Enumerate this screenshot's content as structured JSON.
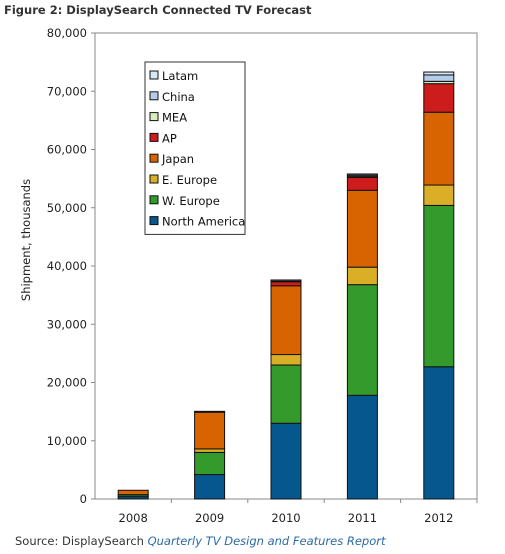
{
  "figure_title": "Figure 2: DisplaySearch Connected TV Forecast",
  "source": {
    "prefix": "Source: DisplaySearch ",
    "publication": "Quarterly TV Design and Features Report"
  },
  "chart_data": {
    "type": "bar",
    "stacked": true,
    "categories": [
      "2008",
      "2009",
      "2010",
      "2011",
      "2012"
    ],
    "ylabel": "Shipment, thousands",
    "xlabel": "",
    "ylim": [
      0,
      80000
    ],
    "yticks": [
      0,
      10000,
      20000,
      30000,
      40000,
      50000,
      60000,
      70000,
      80000
    ],
    "ytick_labels": [
      "0",
      "10,000",
      "20,000",
      "30,000",
      "40,000",
      "50,000",
      "60,000",
      "70,000",
      "80,000"
    ],
    "grid": false,
    "legend_position": "top-left",
    "series": [
      {
        "name": "North America",
        "color": "#05578e",
        "values": [
          400,
          4200,
          13000,
          17800,
          22700
        ]
      },
      {
        "name": "W. Europe",
        "color": "#339a2b",
        "values": [
          300,
          3800,
          10000,
          19000,
          27700
        ]
      },
      {
        "name": "E. Europe",
        "color": "#dbae28",
        "values": [
          50,
          600,
          1800,
          3000,
          3500
        ]
      },
      {
        "name": "Japan",
        "color": "#d76400",
        "values": [
          750,
          6300,
          11800,
          13200,
          12500
        ]
      },
      {
        "name": "AP",
        "color": "#cc1c1c",
        "values": [
          0,
          150,
          700,
          2200,
          4900
        ]
      },
      {
        "name": "MEA",
        "color": "#d6f0bd",
        "values": [
          0,
          0,
          100,
          200,
          400
        ]
      },
      {
        "name": "China",
        "color": "#b4cbea",
        "values": [
          0,
          0,
          200,
          200,
          1100
        ]
      },
      {
        "name": "Latam",
        "color": "#d4e8f6",
        "values": [
          0,
          0,
          0,
          200,
          500
        ]
      }
    ]
  }
}
